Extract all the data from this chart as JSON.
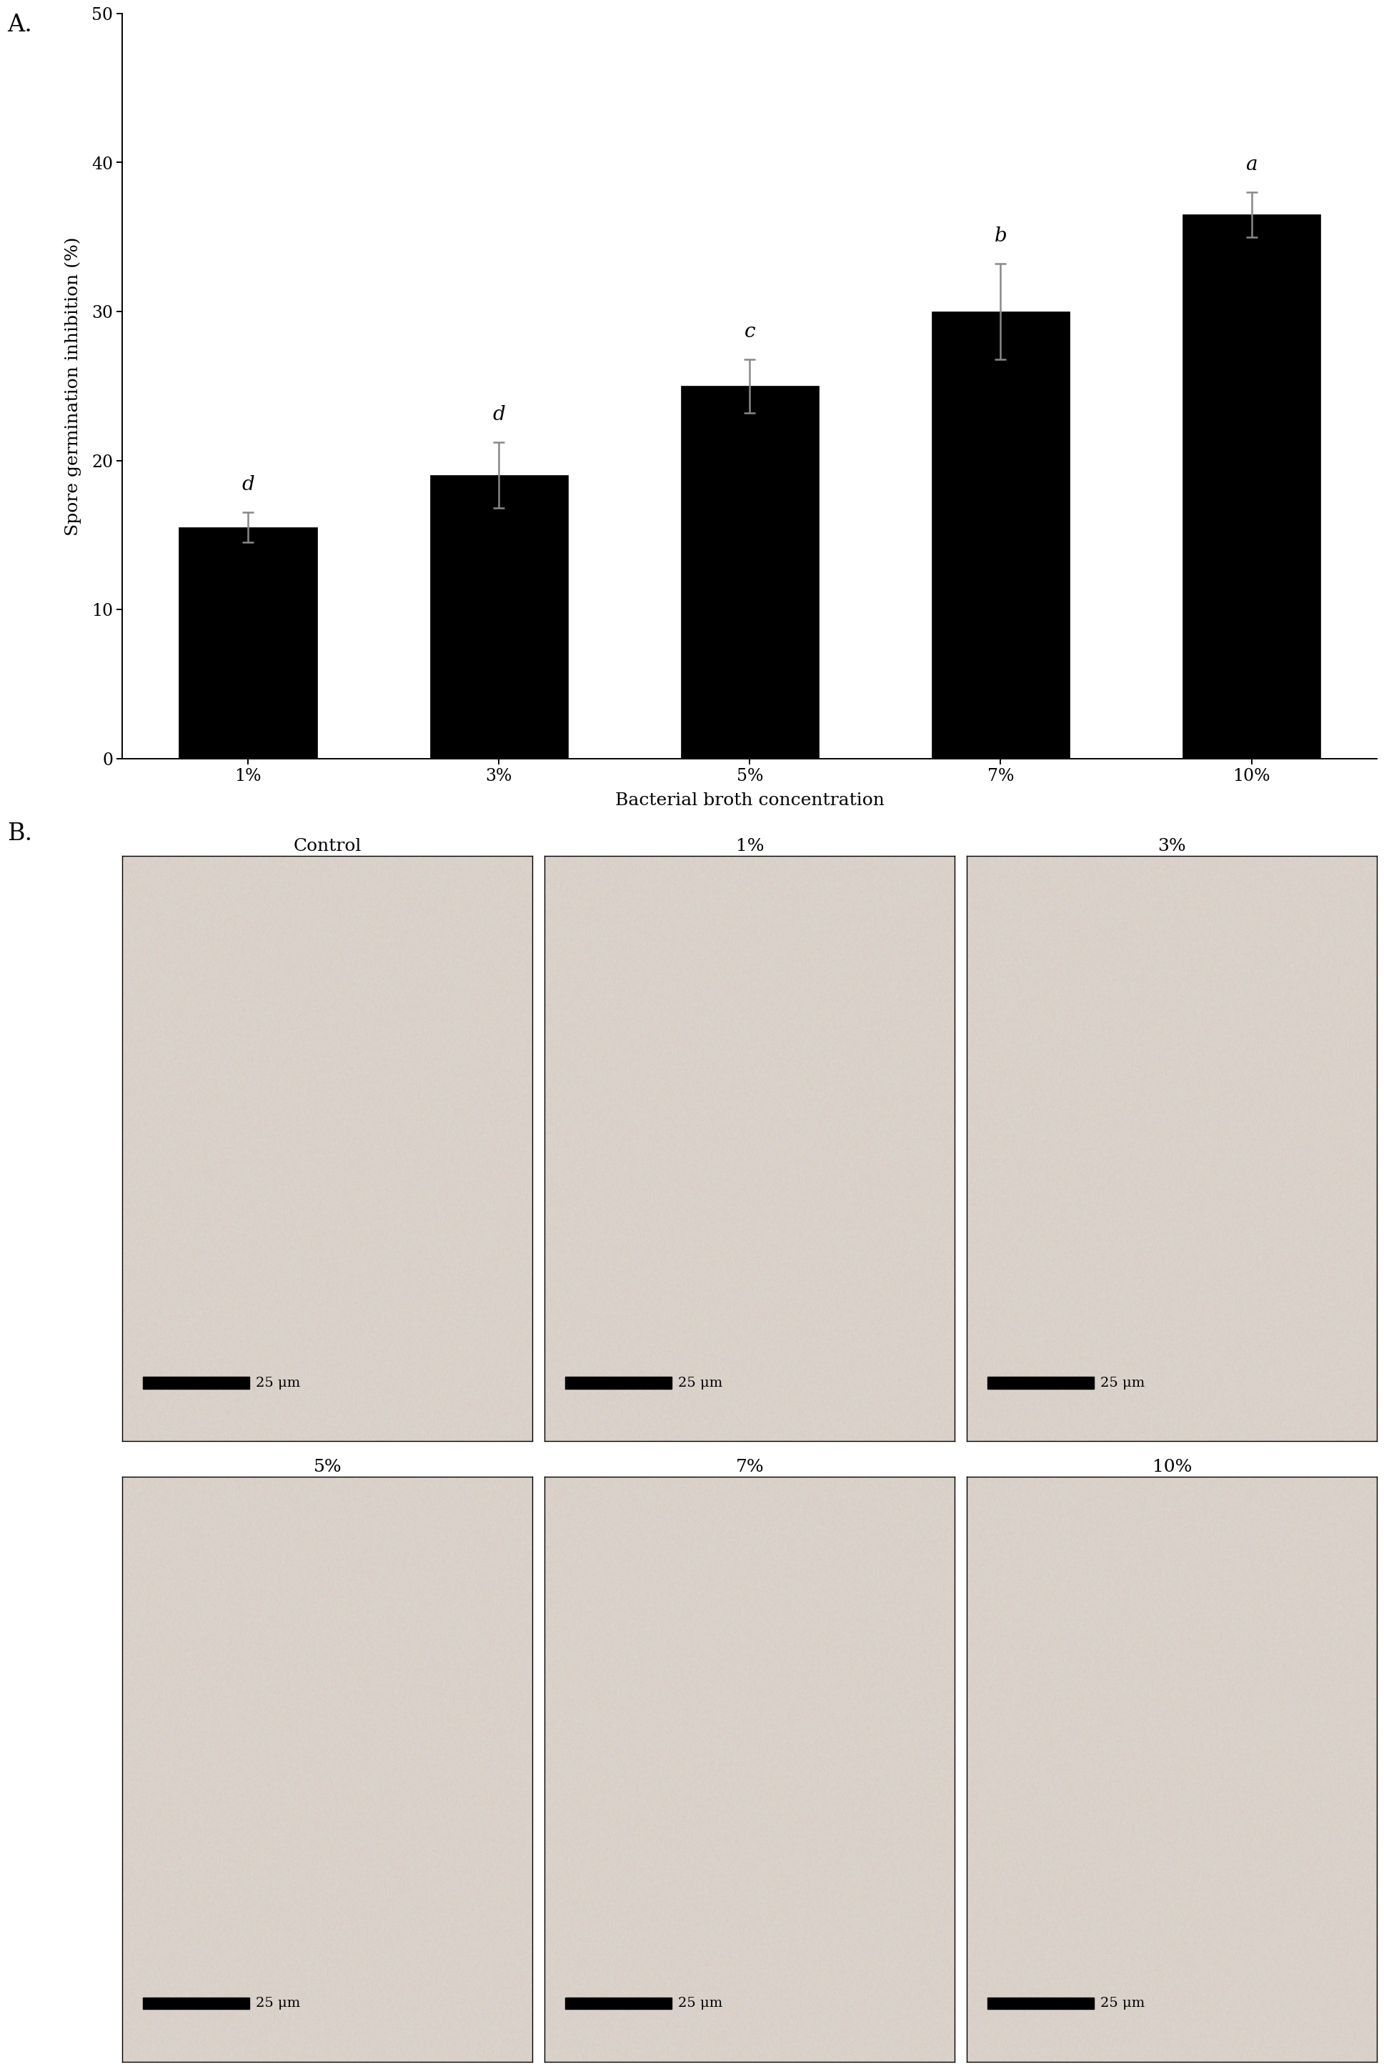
{
  "panel_a_label": "A.",
  "panel_b_label": "B.",
  "bar_categories": [
    "1%",
    "3%",
    "5%",
    "7%",
    "10%"
  ],
  "bar_values": [
    15.5,
    19.0,
    25.0,
    30.0,
    36.5
  ],
  "bar_errors": [
    1.0,
    2.2,
    1.8,
    3.2,
    1.5
  ],
  "bar_letters": [
    "d",
    "d",
    "c",
    "b",
    "a"
  ],
  "bar_color": "#000000",
  "ylabel": "Spore germination inhibition (%)",
  "xlabel": "Bacterial broth concentration",
  "ylim": [
    0,
    50
  ],
  "yticks": [
    0,
    10,
    20,
    30,
    40,
    50
  ],
  "micro_labels": [
    "Control",
    "1%",
    "3%",
    "5%",
    "7%",
    "10%"
  ],
  "scale_text": "25 μm",
  "figure_bg": "#ffffff",
  "bar_width": 0.55,
  "letter_fontsize": 20,
  "axis_fontsize": 18,
  "tick_fontsize": 17,
  "panel_label_fontsize": 24,
  "micro_title_fontsize": 18,
  "scale_fontsize": 14,
  "micro_bg_r": 0.855,
  "micro_bg_g": 0.82,
  "micro_bg_b": 0.79
}
